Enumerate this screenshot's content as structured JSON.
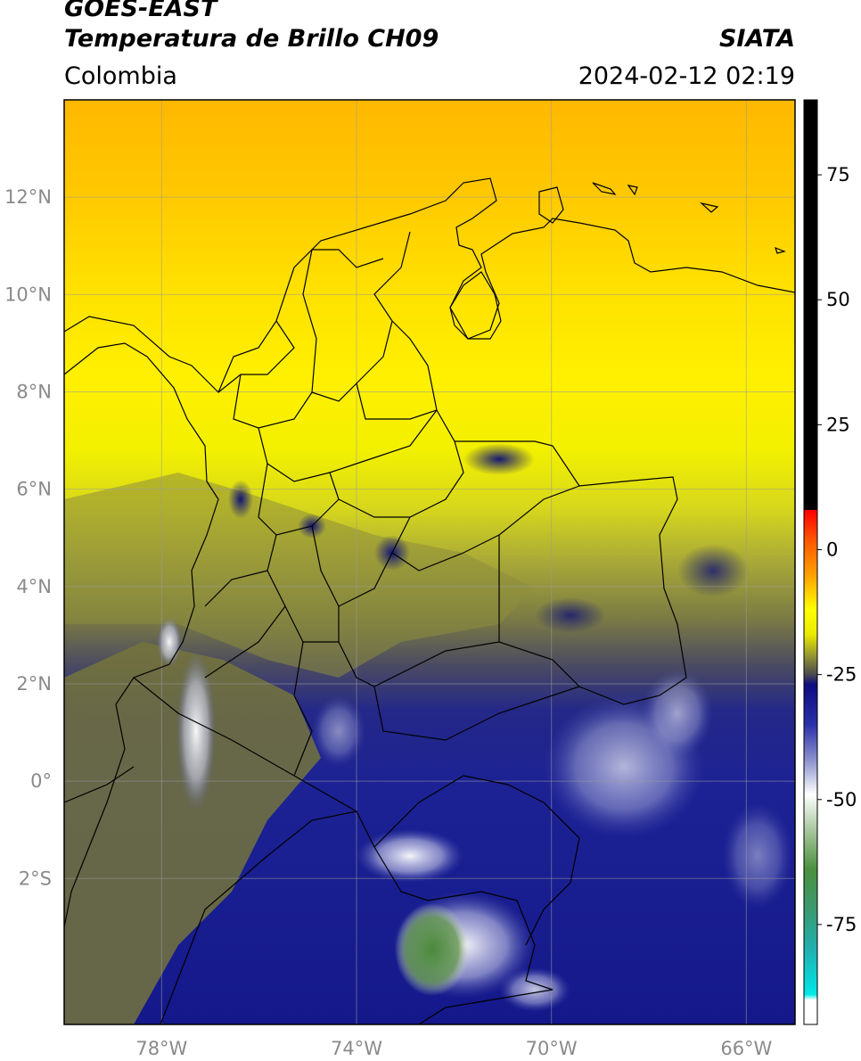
{
  "header": {
    "satellite": "GOES-EAST",
    "product": "Temperatura de Brillo CH09",
    "brand": "SIATA",
    "region": "Colombia",
    "datetime": "2024-02-12 02:19"
  },
  "map": {
    "lon_range": [
      -80,
      -65
    ],
    "lat_range": [
      -5,
      14
    ],
    "lat_ticks": [
      {
        "value": 12,
        "label": "12°N"
      },
      {
        "value": 10,
        "label": "10°N"
      },
      {
        "value": 8,
        "label": "8°N"
      },
      {
        "value": 6,
        "label": "6°N"
      },
      {
        "value": 4,
        "label": "4°N"
      },
      {
        "value": 2,
        "label": "2°N"
      },
      {
        "value": 0,
        "label": "0°"
      },
      {
        "value": -2,
        "label": "2°S"
      }
    ],
    "lon_ticks": [
      {
        "value": -78,
        "label": "78°W"
      },
      {
        "value": -74,
        "label": "74°W"
      },
      {
        "value": -70,
        "label": "70°W"
      },
      {
        "value": -66,
        "label": "66°W"
      }
    ],
    "grid": true
  },
  "colorbar": {
    "range": [
      -95,
      90
    ],
    "ticks": [
      {
        "value": 75,
        "label": "75"
      },
      {
        "value": 50,
        "label": "50"
      },
      {
        "value": 25,
        "label": "25"
      },
      {
        "value": 0,
        "label": "0"
      },
      {
        "value": -25,
        "label": "-25"
      },
      {
        "value": -50,
        "label": "-50"
      },
      {
        "value": -75,
        "label": "-75"
      }
    ],
    "stops": [
      {
        "value": 90,
        "color": "#000000"
      },
      {
        "value": 8,
        "color": "#000000"
      },
      {
        "value": 7.9,
        "color": "#ff0000"
      },
      {
        "value": 2,
        "color": "#ff5500"
      },
      {
        "value": -5,
        "color": "#ffa000"
      },
      {
        "value": -12,
        "color": "#ffff00"
      },
      {
        "value": -17,
        "color": "#eaea00"
      },
      {
        "value": -21,
        "color": "#9a9a30"
      },
      {
        "value": -25,
        "color": "#4a4a50"
      },
      {
        "value": -27,
        "color": "#0c0c80"
      },
      {
        "value": -35,
        "color": "#2a30a8"
      },
      {
        "value": -42,
        "color": "#8a90cc"
      },
      {
        "value": -49,
        "color": "#ffffff"
      },
      {
        "value": -56,
        "color": "#aac8a0"
      },
      {
        "value": -64,
        "color": "#4a9040"
      },
      {
        "value": -72,
        "color": "#3a9a70"
      },
      {
        "value": -80,
        "color": "#20b0b0"
      },
      {
        "value": -89,
        "color": "#00e8e8"
      },
      {
        "value": -90.1,
        "color": "#ffffff"
      },
      {
        "value": -95,
        "color": "#ffffff"
      }
    ]
  }
}
